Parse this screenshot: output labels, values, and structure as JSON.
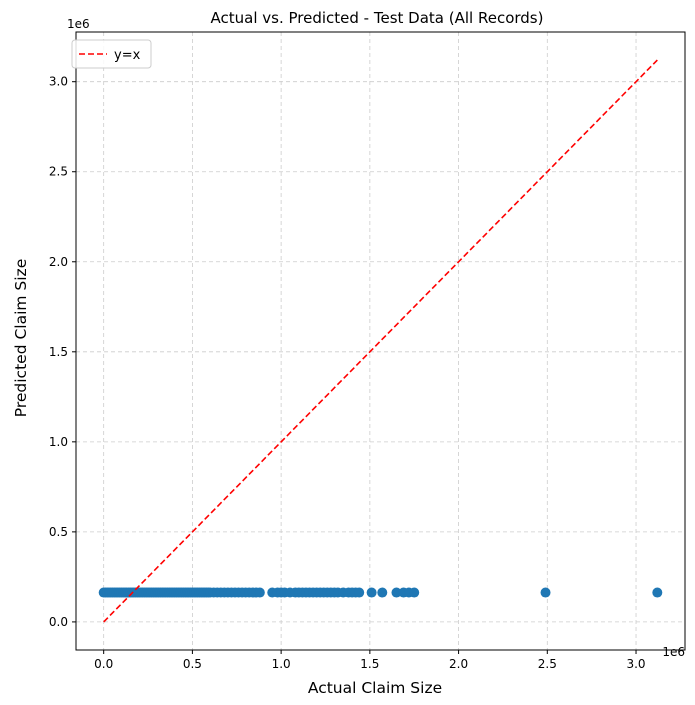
{
  "chart_data": {
    "type": "scatter",
    "title": "Actual vs. Predicted - Test Data (All Records)",
    "xlabel": "Actual Claim Size",
    "ylabel": "Predicted Claim Size",
    "x_offset_label": "1e6",
    "y_offset_label": "1e6",
    "xlim": [
      -0.156,
      3.276
    ],
    "ylim": [
      -0.156,
      3.276
    ],
    "x_ticks": [
      {
        "value": 0.0,
        "label": "0.0"
      },
      {
        "value": 0.5,
        "label": "0.5"
      },
      {
        "value": 1.0,
        "label": "1.0"
      },
      {
        "value": 1.5,
        "label": "1.5"
      },
      {
        "value": 2.0,
        "label": "2.0"
      },
      {
        "value": 2.5,
        "label": "2.5"
      },
      {
        "value": 3.0,
        "label": "3.0"
      }
    ],
    "y_ticks": [
      {
        "value": 0.0,
        "label": "0.0"
      },
      {
        "value": 0.5,
        "label": "0.5"
      },
      {
        "value": 1.0,
        "label": "1.0"
      },
      {
        "value": 1.5,
        "label": "1.5"
      },
      {
        "value": 2.0,
        "label": "2.0"
      },
      {
        "value": 2.5,
        "label": "2.5"
      },
      {
        "value": 3.0,
        "label": "3.0"
      }
    ],
    "grid": true,
    "legend": {
      "position": "top-left",
      "entries": [
        "y=x"
      ]
    },
    "colors": {
      "points": "#1f77b4",
      "reference_line": "#ff0000",
      "grid": "#cccccc"
    },
    "reference_line": {
      "name": "y=x",
      "from": [
        0.0,
        0.0
      ],
      "to": [
        3.12,
        3.12
      ]
    },
    "series": [
      {
        "x": [
          0.0,
          0.01,
          0.02,
          0.03,
          0.04,
          0.05,
          0.06,
          0.07,
          0.08,
          0.09,
          0.1,
          0.11,
          0.12,
          0.13,
          0.14,
          0.15,
          0.16,
          0.17,
          0.18,
          0.19,
          0.2,
          0.21,
          0.22,
          0.23,
          0.24,
          0.25,
          0.26,
          0.27,
          0.28,
          0.29,
          0.3,
          0.31,
          0.32,
          0.33,
          0.34,
          0.35,
          0.36,
          0.37,
          0.38,
          0.39,
          0.4,
          0.41,
          0.42,
          0.43,
          0.44,
          0.45,
          0.46,
          0.47,
          0.48,
          0.49,
          0.5,
          0.51,
          0.52,
          0.53,
          0.54,
          0.55,
          0.56,
          0.57,
          0.58,
          0.59,
          0.6,
          0.62,
          0.64,
          0.66,
          0.68,
          0.7,
          0.72,
          0.74,
          0.76,
          0.78,
          0.8,
          0.82,
          0.84,
          0.86,
          0.88,
          0.95,
          0.98,
          1.0,
          1.02,
          1.05,
          1.08,
          1.1,
          1.12,
          1.14,
          1.16,
          1.18,
          1.2,
          1.22,
          1.24,
          1.26,
          1.28,
          1.3,
          1.32,
          1.35,
          1.38,
          1.4,
          1.42,
          1.44,
          1.51,
          1.57,
          1.65,
          1.69,
          1.72,
          1.75,
          2.49,
          3.12
        ],
        "y": [
          0.163,
          0.163,
          0.163,
          0.163,
          0.163,
          0.163,
          0.163,
          0.163,
          0.163,
          0.163,
          0.163,
          0.163,
          0.163,
          0.163,
          0.163,
          0.163,
          0.163,
          0.163,
          0.163,
          0.163,
          0.163,
          0.163,
          0.163,
          0.163,
          0.163,
          0.163,
          0.163,
          0.163,
          0.163,
          0.163,
          0.163,
          0.163,
          0.163,
          0.163,
          0.163,
          0.163,
          0.163,
          0.163,
          0.163,
          0.163,
          0.163,
          0.163,
          0.163,
          0.163,
          0.163,
          0.163,
          0.163,
          0.163,
          0.163,
          0.163,
          0.163,
          0.163,
          0.163,
          0.163,
          0.163,
          0.163,
          0.163,
          0.163,
          0.163,
          0.163,
          0.163,
          0.163,
          0.163,
          0.163,
          0.163,
          0.163,
          0.163,
          0.163,
          0.163,
          0.163,
          0.163,
          0.163,
          0.163,
          0.163,
          0.163,
          0.163,
          0.163,
          0.163,
          0.163,
          0.163,
          0.163,
          0.163,
          0.163,
          0.163,
          0.163,
          0.163,
          0.163,
          0.163,
          0.163,
          0.163,
          0.163,
          0.163,
          0.163,
          0.163,
          0.163,
          0.163,
          0.163,
          0.163,
          0.163,
          0.163,
          0.163,
          0.163,
          0.163,
          0.163,
          0.163,
          0.163
        ]
      }
    ]
  }
}
